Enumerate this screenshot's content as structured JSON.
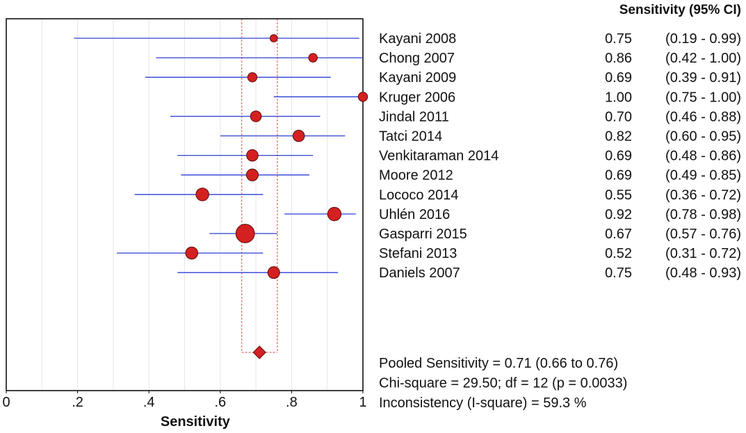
{
  "chart_data": {
    "type": "forest",
    "table_header": "Sensitivity (95% CI)",
    "xlabel": "Sensitivity",
    "xlim": [
      0,
      1
    ],
    "x_ticks": [
      {
        "value": 0,
        "label": "0"
      },
      {
        "value": 0.2,
        "label": ".2"
      },
      {
        "value": 0.4,
        "label": ".4"
      },
      {
        "value": 0.6,
        "label": ".6"
      },
      {
        "value": 0.8,
        "label": ".8"
      },
      {
        "value": 1,
        "label": "1"
      }
    ],
    "grid": true,
    "studies": [
      {
        "name": "Kayani 2008",
        "estimate": 0.75,
        "lower": 0.19,
        "upper": 0.99,
        "estimate_label": "0.75",
        "ci_label": "(0.19 - 0.99)",
        "weight": 1
      },
      {
        "name": "Chong 2007",
        "estimate": 0.86,
        "lower": 0.42,
        "upper": 1.0,
        "estimate_label": "0.86",
        "ci_label": "(0.42 - 1.00)",
        "weight": 1.4
      },
      {
        "name": "Kayani  2009",
        "estimate": 0.69,
        "lower": 0.39,
        "upper": 0.91,
        "estimate_label": "0.69",
        "ci_label": "(0.39 - 0.91)",
        "weight": 1.6
      },
      {
        "name": "Kruger  2006",
        "estimate": 1.0,
        "lower": 0.75,
        "upper": 1.0,
        "estimate_label": "1.00",
        "ci_label": "(0.75 - 1.00)",
        "weight": 1.6
      },
      {
        "name": "Jindal  2011",
        "estimate": 0.7,
        "lower": 0.46,
        "upper": 0.88,
        "estimate_label": "0.70",
        "ci_label": "(0.46 - 0.88)",
        "weight": 2.1
      },
      {
        "name": "Tatci  2014",
        "estimate": 0.82,
        "lower": 0.6,
        "upper": 0.95,
        "estimate_label": "0.82",
        "ci_label": "(0.60 - 0.95)",
        "weight": 2.3
      },
      {
        "name": "Venkitaraman 2014",
        "estimate": 0.69,
        "lower": 0.48,
        "upper": 0.86,
        "estimate_label": "0.69",
        "ci_label": "(0.48 - 0.86)",
        "weight": 2.3
      },
      {
        "name": "Moore 2012",
        "estimate": 0.69,
        "lower": 0.49,
        "upper": 0.85,
        "estimate_label": "0.69",
        "ci_label": "(0.49 - 0.85)",
        "weight": 2.4
      },
      {
        "name": "Lococo 2014",
        "estimate": 0.55,
        "lower": 0.36,
        "upper": 0.72,
        "estimate_label": "0.55",
        "ci_label": "(0.36 - 0.72)",
        "weight": 2.7
      },
      {
        "name": "Uhlén  2016",
        "estimate": 0.92,
        "lower": 0.78,
        "upper": 0.98,
        "estimate_label": "0.92",
        "ci_label": "(0.78 - 0.98)",
        "weight": 2.9
      },
      {
        "name": "Gasparri  2015",
        "estimate": 0.67,
        "lower": 0.57,
        "upper": 0.76,
        "estimate_label": "0.67",
        "ci_label": "(0.57 - 0.76)",
        "weight": 4.5
      },
      {
        "name": "Stefani  2013",
        "estimate": 0.52,
        "lower": 0.31,
        "upper": 0.72,
        "estimate_label": "0.52",
        "ci_label": "(0.31 - 0.72)",
        "weight": 2.5
      },
      {
        "name": "Daniels 2007",
        "estimate": 0.75,
        "lower": 0.48,
        "upper": 0.93,
        "estimate_label": "0.75",
        "ci_label": "(0.48 - 0.93)",
        "weight": 2.4
      }
    ],
    "pooled": {
      "estimate": 0.71,
      "lower": 0.66,
      "upper": 0.76
    },
    "summary_lines": [
      "Pooled Sensitivity = 0.71 (0.66 to 0.76)",
      "Chi-square = 29.50; df =  12 (p = 0.0033)",
      "Inconsistency (I-square) = 59.3 %"
    ],
    "colors": {
      "ci_line": "#2b3fd6",
      "point_fill": "#d42020",
      "point_stroke": "#5a0b0b",
      "pooled_band": "#f08080",
      "grid": "#e6e6e6",
      "frame": "#000000"
    }
  }
}
